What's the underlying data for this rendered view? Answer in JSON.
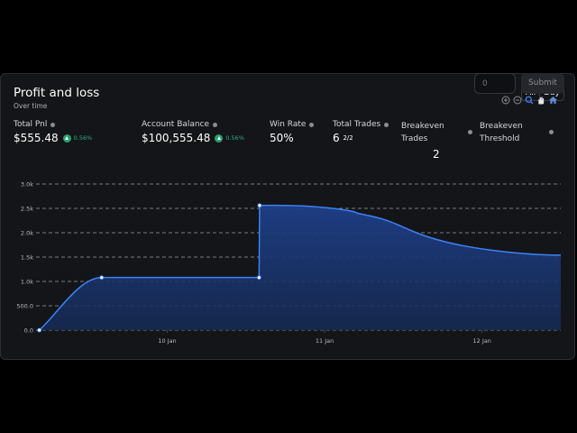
{
  "header": {
    "title": "Profit and loss",
    "subtitle": "Over time"
  },
  "range_toggle": {
    "all": "All",
    "day": "Day"
  },
  "stats": {
    "total_pnl": {
      "label": "Total Pnl",
      "value": "$555.48",
      "change": "0.56%"
    },
    "account_balance": {
      "label": "Account Balance",
      "value": "$100,555.48",
      "change": "0.56%"
    },
    "win_rate": {
      "label": "Win Rate",
      "value": "50%"
    },
    "total_trades": {
      "label": "Total Trades",
      "value": "6",
      "ratio": "2/2"
    },
    "breakeven_trades": {
      "label_line1": "Breakeven",
      "label_line2": "Trades",
      "value": "2"
    },
    "breakeven_threshold": {
      "label_line1": "Breakeven",
      "label_line2": "Threshold"
    }
  },
  "threshold_input": {
    "placeholder": "0"
  },
  "submit_label": "Submit",
  "chart_toolbar": [
    "zoom-in-icon",
    "zoom-out-icon",
    "zoom-select-icon",
    "pan-hand-icon",
    "reset-home-icon"
  ],
  "colors": {
    "line": "#3b82f6",
    "positive": "#2bb37b",
    "background": "#141518"
  },
  "chart_data": {
    "type": "area",
    "x_tick_labels": [
      "10 Jan",
      "11 Jan",
      "12 Jan"
    ],
    "y_tick_labels": [
      "0.0",
      "500.0",
      "1.0k",
      "1.5k",
      "2.0k",
      "2.5k",
      "3.0k"
    ],
    "ylim": [
      0,
      3000
    ],
    "xlim_days": [
      "2024-01-09T04:00",
      "2024-01-12T12:00"
    ],
    "series": [
      {
        "points": [
          {
            "x": "2024-01-09T04:30",
            "y": 0
          },
          {
            "x": "2024-01-09T14:00",
            "y": 1080
          },
          {
            "x": "2024-01-10T14:00",
            "y": 1080
          },
          {
            "x": "2024-01-10T14:05",
            "y": 2560
          },
          {
            "x": "2024-01-11T05:00",
            "y": 2400
          },
          {
            "x": "2024-01-11T14:00",
            "y": 2000
          },
          {
            "x": "2024-01-12T12:00",
            "y": 1540
          }
        ],
        "markers": [
          0,
          1,
          2,
          3
        ]
      }
    ],
    "grid": "horizontal-dashed"
  }
}
